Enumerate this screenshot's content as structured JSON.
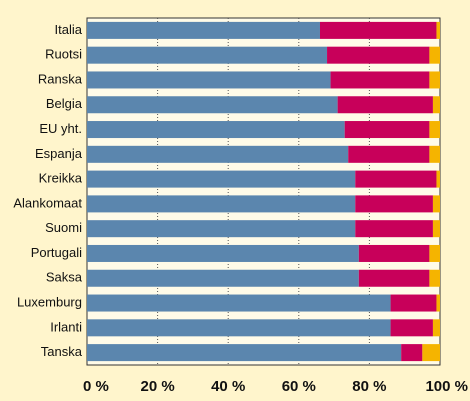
{
  "chart_data": {
    "type": "stacked-barh",
    "categories": [
      "Italia",
      "Ruotsi",
      "Ranska",
      "Belgia",
      "EU yht.",
      "Espanja",
      "Kreikka",
      "Alankomaat",
      "Suomi",
      "Portugali",
      "Saksa",
      "Luxemburg",
      "Irlanti",
      "Tanska"
    ],
    "series": [
      {
        "color": "#5b86ae",
        "values": [
          66,
          68,
          69,
          71,
          73,
          74,
          76,
          76,
          76,
          77,
          77,
          86,
          86,
          89
        ]
      },
      {
        "color": "#c8005a",
        "values": [
          33,
          29,
          28,
          27,
          24,
          23,
          23,
          22,
          22,
          20,
          20,
          13,
          12,
          6
        ]
      },
      {
        "color": "#f5b400",
        "values": [
          1,
          3,
          3,
          2,
          3,
          3,
          1,
          2,
          2,
          3,
          3,
          1,
          2,
          5
        ]
      }
    ],
    "xlim": [
      0,
      100
    ],
    "xticks": [
      {
        "value": 0,
        "label": "0 %"
      },
      {
        "value": 20,
        "label": "20 %"
      },
      {
        "value": 40,
        "label": "40 %"
      },
      {
        "value": 60,
        "label": "60 %"
      },
      {
        "value": 80,
        "label": "80 %"
      },
      {
        "value": 100,
        "label": "100 %"
      }
    ],
    "grid": true
  }
}
